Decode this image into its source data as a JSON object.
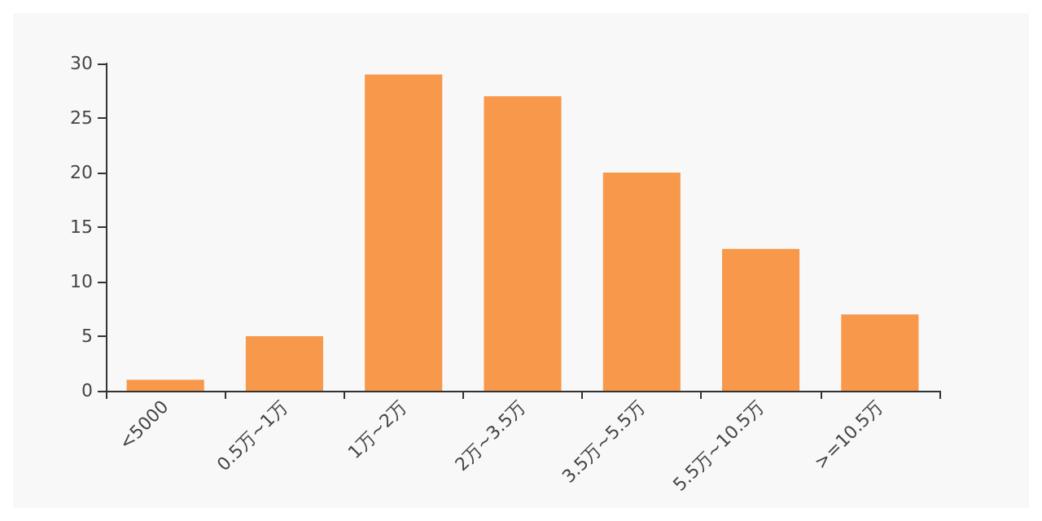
{
  "chart_data": {
    "type": "bar",
    "categories": [
      "<5000",
      "0.5万~1万",
      "1万~2万",
      "2万~3.5万",
      "3.5万~5.5万",
      "5.5万~10.5万",
      ">=10.5万"
    ],
    "values": [
      1,
      5,
      29,
      27,
      20,
      13,
      7
    ],
    "color": "#f7984a",
    "ylim": [
      0,
      30
    ],
    "yticks": [
      0,
      5,
      10,
      15,
      20,
      25,
      30
    ],
    "grid": false
  }
}
